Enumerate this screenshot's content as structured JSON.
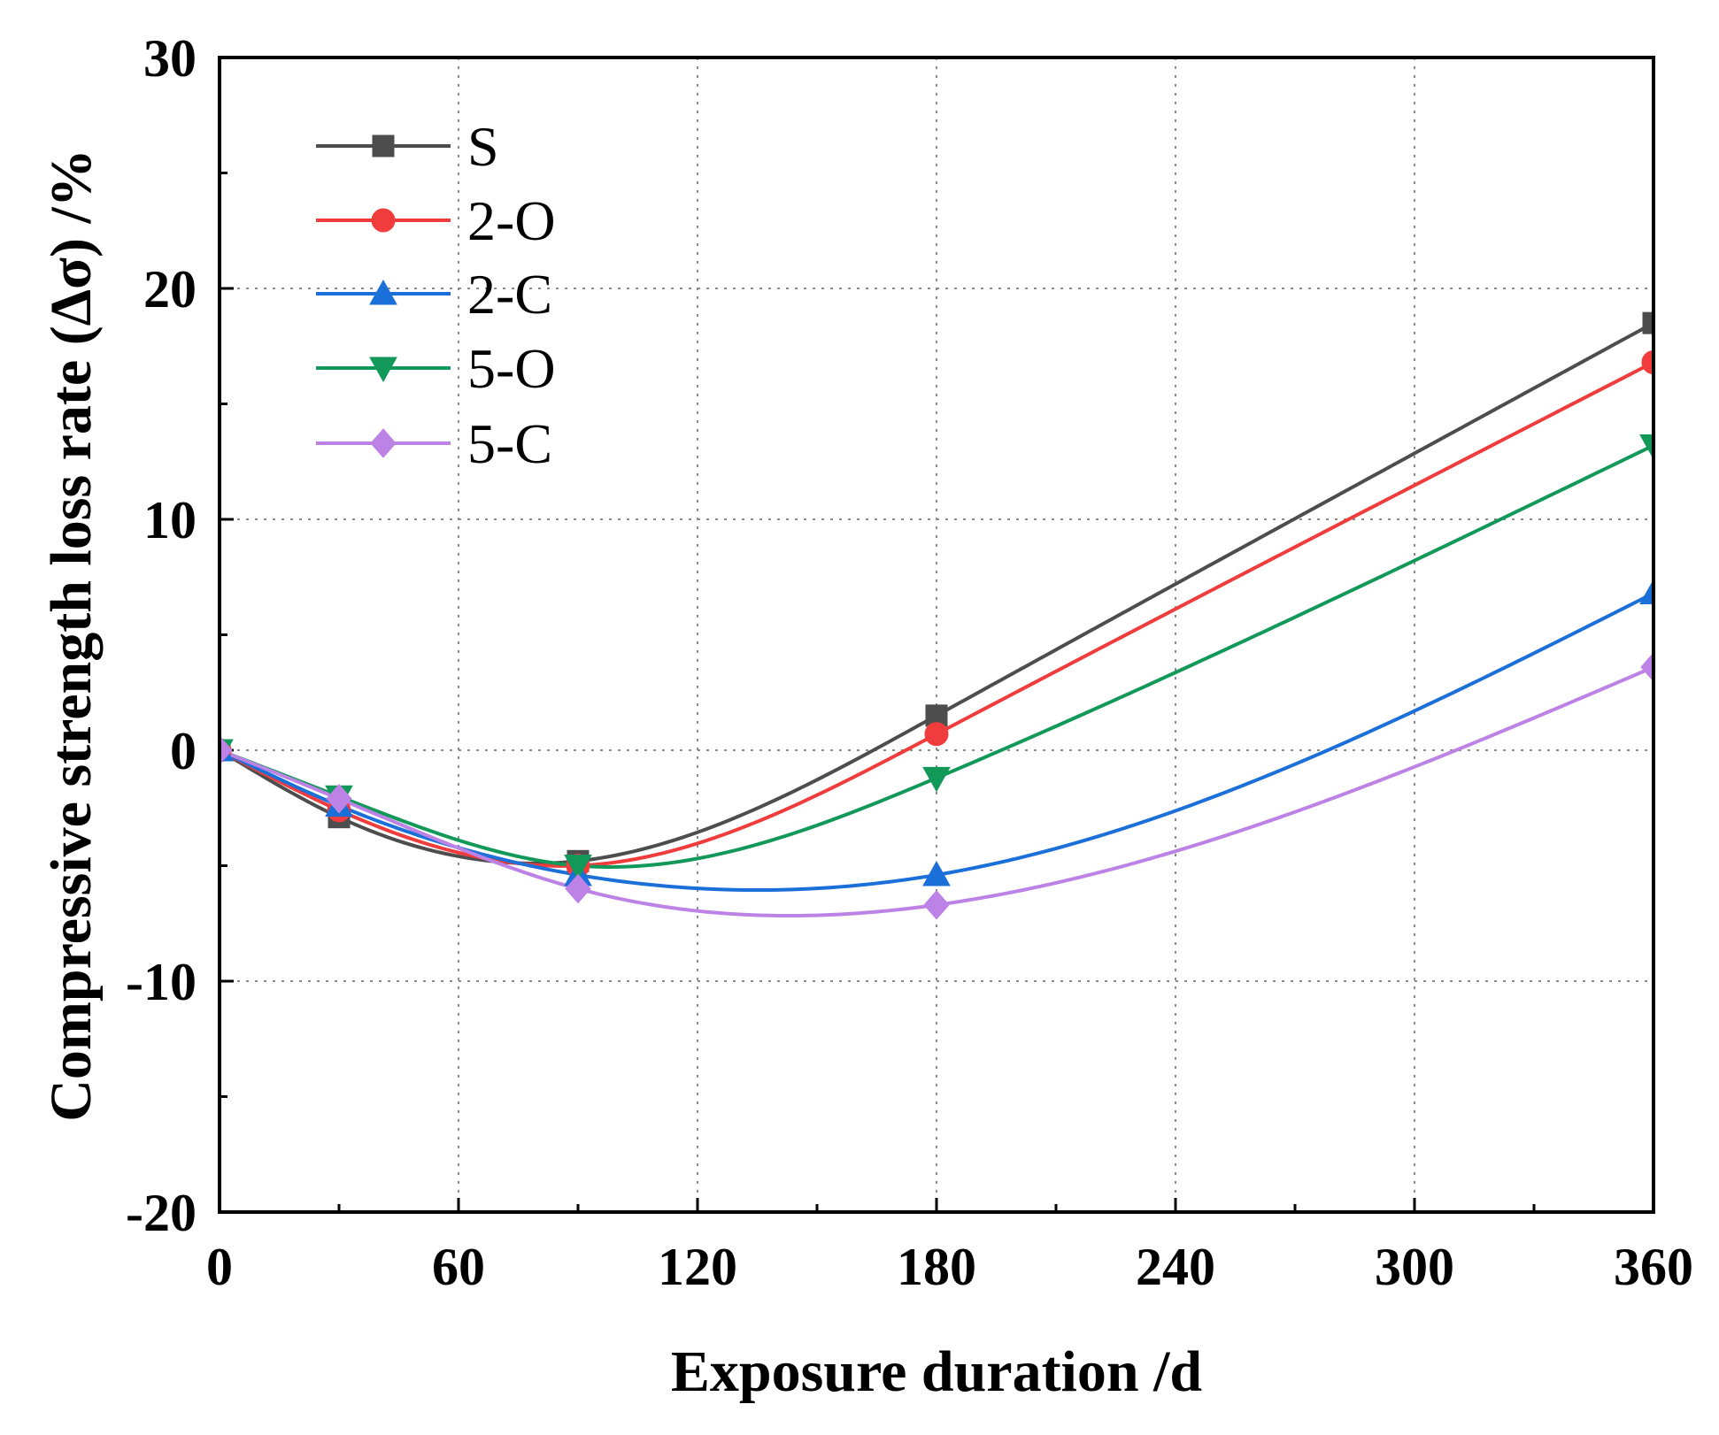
{
  "chart_data": {
    "type": "line",
    "title": "",
    "xlabel": "Exposure duration /d",
    "ylabel": "Compressive strength loss rate (Δσ) /%",
    "x": [
      0,
      30,
      90,
      180,
      360
    ],
    "xlim": [
      0,
      360
    ],
    "ylim": [
      -20,
      30
    ],
    "xticks": [
      "0",
      "60",
      "120",
      "180",
      "240",
      "300",
      "360"
    ],
    "yticks": [
      "30",
      "20",
      "10",
      "0",
      "-10",
      "-20"
    ],
    "grid": true,
    "legend_position": "top-left",
    "series": [
      {
        "name": "S",
        "color": "#4d4d4d",
        "marker": "square",
        "values": [
          0,
          -2.9,
          -4.8,
          1.5,
          18.5
        ]
      },
      {
        "name": "2-O",
        "color": "#f03c3c",
        "marker": "circle",
        "values": [
          0,
          -2.6,
          -5.0,
          0.7,
          16.8
        ]
      },
      {
        "name": "2-C",
        "color": "#1a6fd8",
        "marker": "triangle-up",
        "values": [
          0,
          -2.4,
          -5.4,
          -5.4,
          6.8
        ]
      },
      {
        "name": "5-O",
        "color": "#12995a",
        "marker": "triangle-down",
        "values": [
          0,
          -2.0,
          -5.0,
          -1.2,
          13.2
        ]
      },
      {
        "name": "5-C",
        "color": "#bd82e6",
        "marker": "diamond",
        "values": [
          0,
          -2.1,
          -6.0,
          -6.7,
          3.6
        ]
      }
    ]
  }
}
